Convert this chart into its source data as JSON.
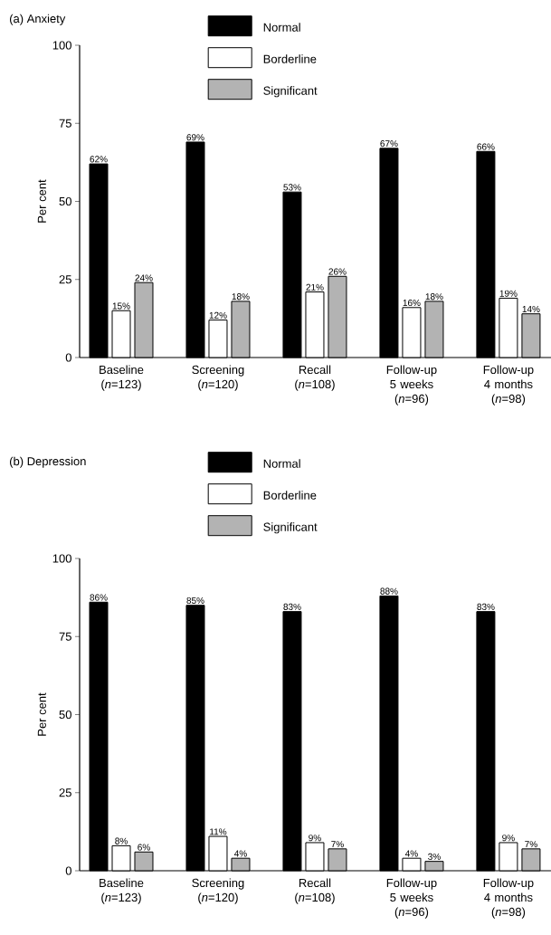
{
  "chart_data": [
    {
      "type": "bar",
      "title": "(a) Anxiety",
      "ylabel": "Per cent",
      "categories": [
        "Baseline (*n*=123)",
        "Screening (*n*=120)",
        "Recall (*n*=108)",
        "Follow-up 5 weeks (*n*=96)",
        "Follow-up 4 months (*n*=98)"
      ],
      "series": [
        {
          "name": "Normal",
          "color": "#000000",
          "values": [
            62,
            69,
            53,
            67,
            66
          ],
          "value_labels": [
            "62%",
            "69%",
            "53%",
            "67%",
            "66%"
          ]
        },
        {
          "name": "Borderline",
          "color": "#ffffff",
          "values": [
            15,
            12,
            21,
            16,
            19
          ],
          "value_labels": [
            "15%",
            "12%",
            "21%",
            "16%",
            "19%"
          ]
        },
        {
          "name": "Significant",
          "color": "#b3b3b3",
          "values": [
            24,
            18,
            26,
            18,
            14
          ],
          "value_labels": [
            "24%",
            "18%",
            "26%",
            "18%",
            "14%"
          ]
        }
      ],
      "ylim": [
        0,
        100
      ],
      "yticks": [
        0,
        25,
        50,
        75,
        100
      ],
      "legend": "top"
    },
    {
      "type": "bar",
      "title": "(b) Depression",
      "ylabel": "Per cent",
      "categories": [
        "Baseline (*n*=123)",
        "Screening (*n*=120)",
        "Recall (*n*=108)",
        "Follow-up 5 weeks (*n*=96)",
        "Follow-up 4 months (*n*=98)"
      ],
      "series": [
        {
          "name": "Normal",
          "color": "#000000",
          "values": [
            86,
            85,
            83,
            88,
            83
          ],
          "value_labels": [
            "86%",
            "85%",
            "83%",
            "88%",
            "83%"
          ]
        },
        {
          "name": "Borderline",
          "color": "#ffffff",
          "values": [
            8,
            11,
            9,
            4,
            9
          ],
          "value_labels": [
            "8%",
            "11%",
            "9%",
            "4%",
            "9%"
          ]
        },
        {
          "name": "Significant",
          "color": "#b3b3b3",
          "values": [
            6,
            4,
            7,
            3,
            7
          ],
          "value_labels": [
            "6%",
            "4%",
            "7%",
            "3%",
            "7%"
          ]
        }
      ],
      "ylim": [
        0,
        100
      ],
      "yticks": [
        0,
        25,
        50,
        75,
        100
      ],
      "legend": "top"
    }
  ]
}
